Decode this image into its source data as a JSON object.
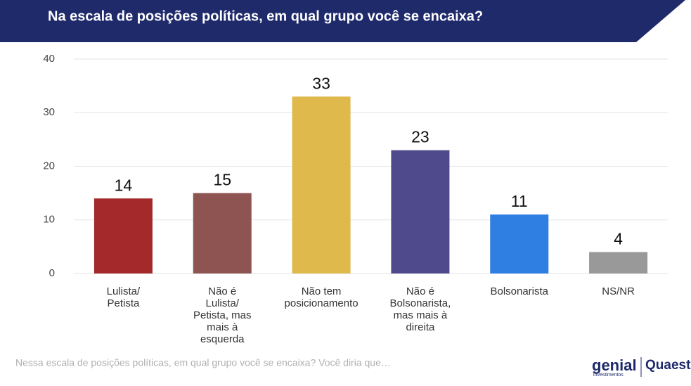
{
  "chart_data": {
    "type": "bar",
    "title": "Na escala de posições políticas, em qual grupo você se encaixa?",
    "categories": [
      "Lulista/ Petista",
      "Não é Lulista/ Petista, mas mais à esquerda",
      "Não tem posicionamento",
      "Não é Bolsonarista, mas mais à direita",
      "Bolsonarista",
      "NS/NR"
    ],
    "values": [
      14,
      15,
      33,
      23,
      11,
      4
    ],
    "colors": [
      "#a3292a",
      "#8e5452",
      "#dfb94b",
      "#4f4a8b",
      "#2f7ee2",
      "#999999"
    ],
    "ylim": [
      0,
      40
    ],
    "yticks": [
      0,
      10,
      20,
      30,
      40
    ],
    "grid": true,
    "note": "Nessa escala de posições políticas, em qual grupo você se encaixa? Você diria que…",
    "logos": [
      "genial",
      "investimentos",
      "Quaest"
    ]
  }
}
